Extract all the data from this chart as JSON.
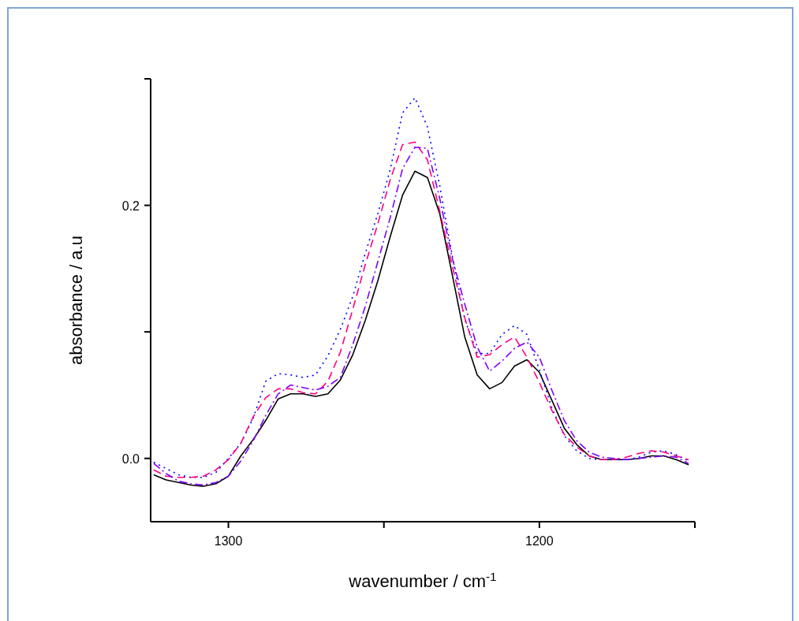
{
  "chart_data": {
    "type": "line",
    "xlabel": "wavenumber / cm$^{-1}$",
    "ylabel": "absorbance / a.u",
    "x": [
      1324,
      1320,
      1316,
      1312,
      1308,
      1304,
      1300,
      1296,
      1292,
      1288,
      1284,
      1280,
      1276,
      1272,
      1268,
      1264,
      1260,
      1256,
      1252,
      1248,
      1244,
      1240,
      1236,
      1232,
      1228,
      1224,
      1220,
      1216,
      1212,
      1208,
      1204,
      1200,
      1196,
      1192,
      1188,
      1184,
      1180,
      1176,
      1172,
      1168,
      1164,
      1160,
      1156,
      1152
    ],
    "xlim": [
      1325,
      1150
    ],
    "xticks": [
      1300,
      {
        "value": 1250,
        "label": null
      },
      1200,
      {
        "value": 1150,
        "label": null
      }
    ],
    "ylim": [
      -0.05,
      0.3
    ],
    "yticks": [
      {
        "value": 0,
        "label": "0.0"
      },
      {
        "value": 0.1,
        "label": null
      },
      {
        "value": 0.2,
        "label": "0.2"
      },
      {
        "value": 0.3,
        "label": null
      }
    ],
    "series": [
      {
        "color": "#000000",
        "line_style": "solid",
        "values": [
          -0.013,
          -0.017,
          -0.019,
          -0.021,
          -0.022,
          -0.02,
          -0.014,
          0.002,
          0.015,
          0.03,
          0.047,
          0.051,
          0.051,
          0.049,
          0.051,
          0.062,
          0.082,
          0.109,
          0.14,
          0.175,
          0.208,
          0.227,
          0.222,
          0.193,
          0.145,
          0.096,
          0.066,
          0.055,
          0.06,
          0.073,
          0.078,
          0.068,
          0.046,
          0.024,
          0.011,
          0.002,
          -0.001,
          -0.001,
          -0.001,
          0.0,
          0.002,
          0.002,
          -0.001,
          -0.005
        ]
      },
      {
        "color": "#0000ff",
        "line_style": "dotted",
        "values": [
          -0.003,
          -0.008,
          -0.013,
          -0.015,
          -0.015,
          -0.011,
          0.0,
          0.012,
          0.032,
          0.061,
          0.067,
          0.066,
          0.064,
          0.066,
          0.081,
          0.102,
          0.128,
          0.162,
          0.193,
          0.228,
          0.273,
          0.285,
          0.262,
          0.215,
          0.16,
          0.11,
          0.083,
          0.083,
          0.098,
          0.105,
          0.098,
          0.07,
          0.04,
          0.018,
          0.006,
          0.0,
          -0.001,
          -0.001,
          -0.001,
          0.001,
          0.005,
          0.006,
          0.003,
          -0.002
        ]
      },
      {
        "color": "#ff0080",
        "line_style": "dashed",
        "values": [
          -0.009,
          -0.014,
          -0.015,
          -0.015,
          -0.014,
          -0.009,
          -0.001,
          0.012,
          0.033,
          0.048,
          0.055,
          0.055,
          0.052,
          0.051,
          0.061,
          0.084,
          0.118,
          0.153,
          0.185,
          0.22,
          0.248,
          0.25,
          0.236,
          0.195,
          0.152,
          0.111,
          0.08,
          0.082,
          0.09,
          0.096,
          0.08,
          0.06,
          0.038,
          0.019,
          0.009,
          0.002,
          -0.001,
          -0.001,
          0.001,
          0.004,
          0.006,
          0.005,
          0.002,
          -0.001
        ]
      },
      {
        "color": "#8000ff",
        "line_style": "dashdot",
        "values": [
          -0.004,
          -0.012,
          -0.018,
          -0.02,
          -0.021,
          -0.019,
          -0.014,
          -0.002,
          0.014,
          0.034,
          0.051,
          0.058,
          0.056,
          0.054,
          0.057,
          0.064,
          0.09,
          0.12,
          0.155,
          0.19,
          0.229,
          0.246,
          0.245,
          0.205,
          0.158,
          0.122,
          0.088,
          0.069,
          0.077,
          0.087,
          0.092,
          0.08,
          0.054,
          0.03,
          0.014,
          0.005,
          0.001,
          0.0,
          -0.001,
          0.0,
          0.001,
          0.002,
          0.001,
          -0.004
        ]
      }
    ]
  }
}
